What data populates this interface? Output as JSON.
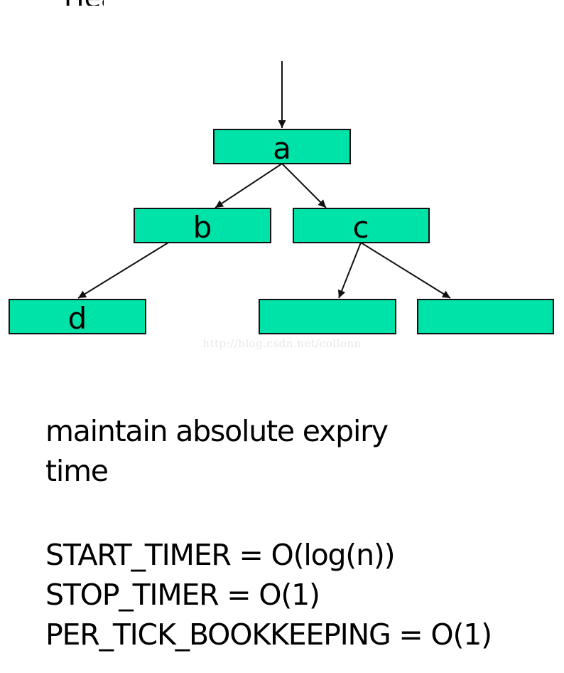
{
  "heading_fragment": "Heap",
  "tree": {
    "fill": "#00e3a8",
    "stroke": "#111111",
    "nodes": [
      {
        "id": "a",
        "label": "a"
      },
      {
        "id": "b",
        "label": "b"
      },
      {
        "id": "c",
        "label": "c"
      },
      {
        "id": "d",
        "label": "d"
      },
      {
        "id": "e",
        "label": ""
      },
      {
        "id": "f",
        "label": ""
      }
    ],
    "edges": [
      {
        "from": "root",
        "to": "a"
      },
      {
        "from": "a",
        "to": "b"
      },
      {
        "from": "a",
        "to": "c"
      },
      {
        "from": "b",
        "to": "d"
      },
      {
        "from": "c",
        "to": "e"
      },
      {
        "from": "c",
        "to": "f"
      }
    ]
  },
  "watermark": "http://blog.csdn.net/collonn",
  "notes": {
    "description_line1": "maintain absolute expiry",
    "description_line2": "time",
    "start_timer": "START_TIMER = O(log(n))",
    "stop_timer": "STOP_TIMER = O(1)",
    "per_tick": "PER_TICK_BOOKKEEPING = O(1)"
  }
}
